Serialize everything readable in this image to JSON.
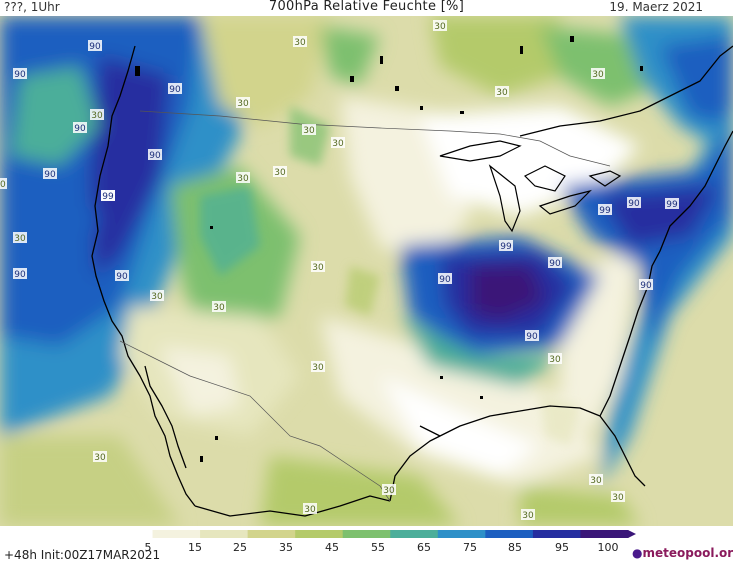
{
  "header": {
    "left": "???, 1Uhr",
    "title": "700hPa Relative Feuchte [%]",
    "date": "19. Maerz 2021"
  },
  "footer": {
    "run": "+48h Init:00Z17MAR2021",
    "brand": "meteopool.org"
  },
  "legend": {
    "ticks": [
      "5",
      "15",
      "25",
      "35",
      "45",
      "55",
      "65",
      "75",
      "85",
      "95",
      "100"
    ],
    "colors": [
      "#ffffff",
      "#f4f2df",
      "#e6e6be",
      "#d2d48c",
      "#b4ca6a",
      "#7dc06e",
      "#4cae9a",
      "#2e90c8",
      "#1d5fc0",
      "#262ea0",
      "#3a1678"
    ]
  },
  "map": {
    "contour_labels": [
      "90",
      "90",
      "90",
      "90",
      "90",
      "90",
      "90",
      "90",
      "90",
      "90",
      "90",
      "90",
      "90",
      "90",
      "99",
      "99",
      "99",
      "99",
      "30",
      "30",
      "30",
      "30",
      "30",
      "30",
      "30",
      "30",
      "30",
      "30",
      "30",
      "30",
      "30",
      "30",
      "30",
      "30",
      "30",
      "30",
      "30",
      "30",
      "30",
      "30",
      "30"
    ]
  }
}
